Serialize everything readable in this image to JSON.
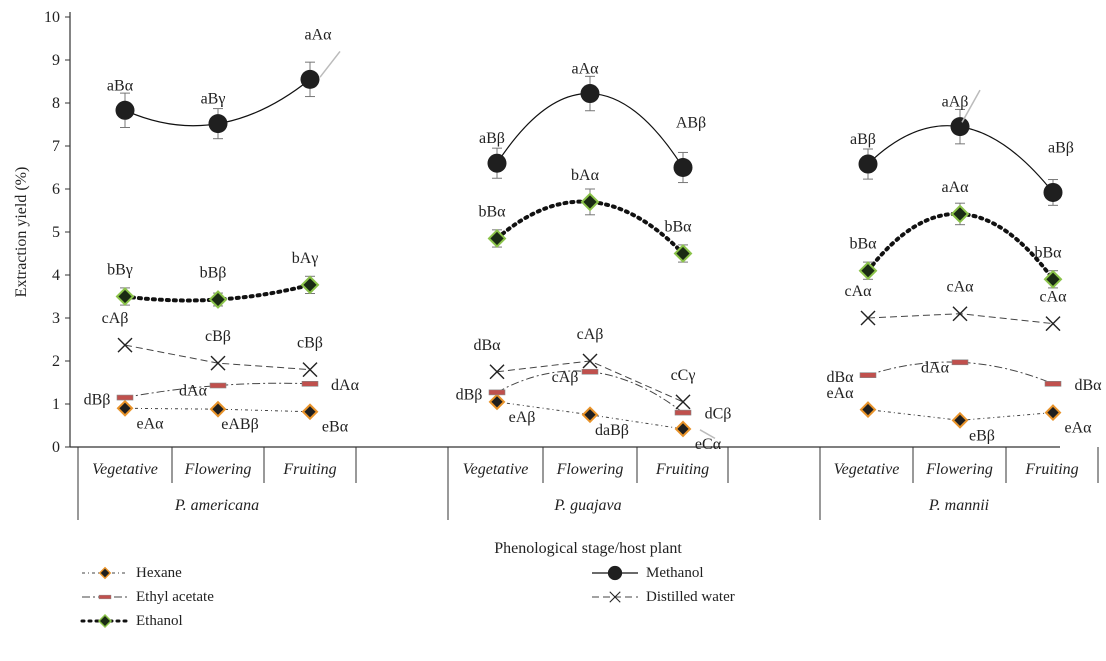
{
  "chart_data": {
    "type": "line",
    "ylabel": "Extraction yield (%)",
    "xlabel": "Phenological stage/host plant",
    "ylim": [
      0,
      10
    ],
    "yticks": [
      "0",
      "1",
      "2",
      "3",
      "4",
      "5",
      "6",
      "7",
      "8",
      "9",
      "10"
    ],
    "grid": false,
    "legend_placement": "bottom",
    "groups": [
      "P. americana",
      "P. guajava",
      "P. mannii"
    ],
    "stages": [
      "Vegetative",
      "Flowering",
      "Fruiting"
    ],
    "series": [
      {
        "name": "Hexane",
        "style": "hexane",
        "values": [
          [
            0.9,
            0.88,
            0.82
          ],
          [
            1.05,
            0.75,
            0.42
          ],
          [
            0.87,
            0.62,
            0.8
          ]
        ],
        "errors": [
          [
            0.05,
            0.05,
            0.05
          ],
          [
            0.05,
            0.05,
            0.08
          ],
          [
            0.05,
            0.05,
            0.05
          ]
        ],
        "labels": [
          [
            "eAα",
            "eABβ",
            "eBα"
          ],
          [
            "eAβ",
            "daBβ",
            "eCα"
          ],
          [
            "",
            "eBβ",
            "eAα"
          ]
        ]
      },
      {
        "name": "Ethyl acetate",
        "style": "ethyl",
        "values": [
          [
            1.15,
            1.43,
            1.47
          ],
          [
            1.27,
            1.75,
            0.8
          ],
          [
            1.67,
            1.97,
            1.47
          ]
        ],
        "errors": [
          [
            0.05,
            0.05,
            0.05
          ],
          [
            0.05,
            0.05,
            0.05
          ],
          [
            0.05,
            0.08,
            0.05
          ]
        ],
        "labels": [
          [
            "dBβ",
            "dAα",
            "dAα"
          ],
          [
            "dBβ",
            "cAβ",
            "dCβ"
          ],
          [
            "dBα\neAα",
            "dAα",
            "dBα"
          ]
        ]
      },
      {
        "name": "Ethanol",
        "style": "ethanol",
        "values": [
          [
            3.5,
            3.43,
            3.77
          ],
          [
            4.85,
            5.7,
            4.5
          ],
          [
            4.1,
            5.42,
            3.9
          ]
        ],
        "errors": [
          [
            0.2,
            0.15,
            0.2
          ],
          [
            0.2,
            0.3,
            0.2
          ],
          [
            0.2,
            0.25,
            0.2
          ]
        ],
        "labels": [
          [
            "bBγ",
            "bBβ",
            "bAγ"
          ],
          [
            "bBα",
            "bAα",
            "bBα"
          ],
          [
            "bBα",
            "aAα",
            "bBα"
          ]
        ]
      },
      {
        "name": "Methanol",
        "style": "methanol",
        "values": [
          [
            7.83,
            7.52,
            8.55
          ],
          [
            6.6,
            8.22,
            6.5
          ],
          [
            6.58,
            7.45,
            5.92
          ]
        ],
        "errors": [
          [
            0.4,
            0.35,
            0.4
          ],
          [
            0.35,
            0.4,
            0.35
          ],
          [
            0.35,
            0.4,
            0.3
          ]
        ],
        "labels": [
          [
            "aBα",
            "aBγ",
            "aAα"
          ],
          [
            "aBβ",
            "aAα",
            "ABβ"
          ],
          [
            "aBβ",
            "aAβ",
            "aBβ"
          ]
        ]
      },
      {
        "name": "Distilled water",
        "style": "water",
        "values": [
          [
            2.37,
            1.95,
            1.8
          ],
          [
            1.75,
            2.0,
            1.05
          ],
          [
            3.0,
            3.1,
            2.87
          ]
        ],
        "errors": [
          [
            0.05,
            0.05,
            0.05
          ],
          [
            0.05,
            0.05,
            0.05
          ],
          [
            0.05,
            0.05,
            0.05
          ]
        ],
        "labels": [
          [
            "cAβ",
            "cBβ",
            "cBβ"
          ],
          [
            "dBα",
            "cAβ",
            "cCγ"
          ],
          [
            "cAα",
            "cAα",
            "cAα"
          ]
        ]
      }
    ],
    "legend_order": [
      "Hexane",
      "Ethyl acetate",
      "Ethanol",
      "Methanol",
      "Distilled water"
    ],
    "colors": {
      "axis": "#333333",
      "marker_fill": "#1f1f1f",
      "hexane_edge": "#e8932a",
      "ethyl_dash": "#c0504d",
      "ethanol_edge": "#8bc34a",
      "errorbar": "#777777",
      "callout": "#bbbbbb"
    }
  }
}
